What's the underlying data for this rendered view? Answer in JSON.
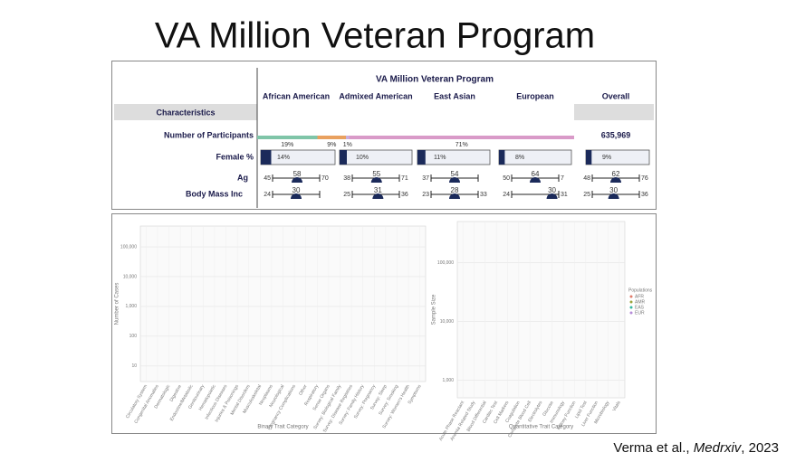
{
  "title": "VA Million Veteran Program",
  "table": {
    "title": "VA Million Veteran Program",
    "columns": [
      "African American",
      "Admixed American",
      "East Asian",
      "European",
      "Overall"
    ],
    "characteristics": "Characteristics",
    "participants": {
      "label": "Number of Participants",
      "shares": [
        19,
        9,
        1,
        71
      ],
      "share_labels": [
        "19%",
        "9%",
        "1%",
        "71%"
      ],
      "colors": [
        "#7fc5a8",
        "#e9a15f",
        "#c9b0de",
        "#d99ac8"
      ],
      "overall": "635,969"
    },
    "female": {
      "label": "Female %",
      "values": [
        14,
        10,
        11,
        8,
        9
      ],
      "value_labels": [
        "14%",
        "10%",
        "11%",
        "8%",
        "9%"
      ]
    },
    "age": {
      "label": "Ag",
      "values": [
        [
          45,
          58,
          70
        ],
        [
          38,
          55,
          71
        ],
        [
          37,
          54,
          null
        ],
        [
          50,
          64,
          7
        ],
        [
          48,
          62,
          76
        ]
      ]
    },
    "bmi": {
      "label": "Body Mass Inc",
      "values": [
        [
          24,
          30,
          null
        ],
        [
          25,
          31,
          36
        ],
        [
          23,
          28,
          33
        ],
        [
          24,
          30,
          31
        ],
        [
          25,
          30,
          36
        ]
      ]
    }
  },
  "plots": [
    {
      "ylabel": "Number of Cases",
      "xlabel": "Binary Trait Category",
      "log": true,
      "ylim": [
        3,
        500000
      ],
      "yticks": [
        {
          "value": 100000,
          "label": "100,000"
        },
        {
          "value": 10000,
          "label": "10,000"
        },
        {
          "value": 1000,
          "label": "1,000"
        },
        100,
        10
      ],
      "categories": [
        "Circulatory System",
        "Congenital Anomalies",
        "Dermatologic",
        "Digestive",
        "Endocrine/Metabolic",
        "Genitourinary",
        "Hematopoietic",
        "Infectious Diseases",
        "Injuries & Poisonings",
        "Mental Disorders",
        "Musculoskeletal",
        "Neoplasms",
        "Neurological",
        "Pregnancy Complications",
        "Other",
        "Respiratory",
        "Sense Organs",
        "Survey: Biological Family",
        "Survey: Disease Registries",
        "Survey: Family History",
        "Survey: Pregnancy",
        "Survey: Sleep",
        "Survey: Smoking",
        "Survey: Women's Health",
        "Symptoms"
      ]
    },
    {
      "ylabel": "Sample Size",
      "xlabel": "Quantitative Trait Category",
      "log": true,
      "ylim": [
        500,
        500000
      ],
      "yticks": [
        {
          "value": 100000,
          "label": "100,000"
        },
        {
          "value": 10000,
          "label": "10,000"
        },
        {
          "value": 1000,
          "label": "1,000"
        }
      ],
      "categories": [
        "Acute Phase Reactant",
        "Anemia Related Study",
        "Blood Differential",
        "Cardiac Test",
        "Cell Markers",
        "Coagulation",
        "Complete Blood Cell",
        "Electrolytes",
        "Glucose",
        "Immunology",
        "Kidney Function",
        "Lipid Test",
        "Liver Function",
        "Microbiology",
        "Vitals"
      ],
      "legend": {
        "title": "Populations",
        "names": [
          "AFR",
          "AMR",
          "EAS",
          "EUR"
        ],
        "colors": [
          "#e07b6a",
          "#9aa33a",
          "#35b79f",
          "#b58ad8"
        ]
      }
    }
  ],
  "citation": {
    "authors": "Verma et al., ",
    "journal": "Medrxiv",
    "year": ", 2023"
  }
}
